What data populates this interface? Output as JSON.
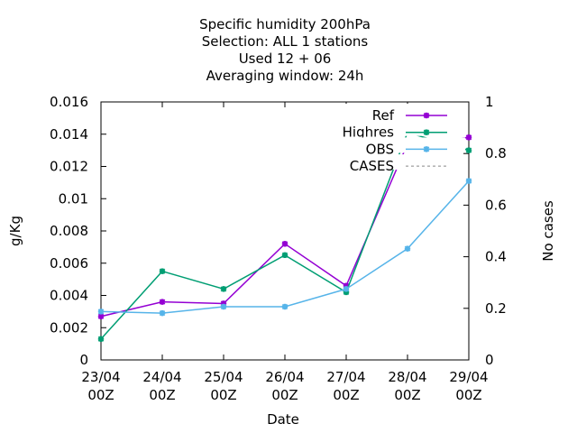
{
  "chart_data": {
    "type": "line",
    "title_lines": [
      "Specific humidity 200hPa",
      "Selection: ALL      1 stations",
      "Used  12 + 06",
      "Averaging window: 24h"
    ],
    "xlabel": "Date",
    "ylabel": "g/Kg",
    "y2label": "No cases",
    "x_ticks": [
      {
        "line1": "23/04",
        "line2": "00Z"
      },
      {
        "line1": "24/04",
        "line2": "00Z"
      },
      {
        "line1": "25/04",
        "line2": "00Z"
      },
      {
        "line1": "26/04",
        "line2": "00Z"
      },
      {
        "line1": "27/04",
        "line2": "00Z"
      },
      {
        "line1": "28/04",
        "line2": "00Z"
      },
      {
        "line1": "29/04",
        "line2": "00Z"
      }
    ],
    "ylim": [
      0,
      0.016
    ],
    "y_ticks": [
      "0",
      "0.002",
      "0.004",
      "0.006",
      "0.008",
      "0.01",
      "0.012",
      "0.014",
      "0.016"
    ],
    "y2lim": [
      0,
      1
    ],
    "y2_ticks": [
      "0",
      "0.2",
      "0.4",
      "0.6",
      "0.8",
      "1"
    ],
    "grid": false,
    "legend_position": "top-right",
    "series": [
      {
        "name": "Ref",
        "color": "#9400d3",
        "marker": "star",
        "values": [
          0.0027,
          0.0036,
          0.0035,
          0.0072,
          0.0046,
          0.0134,
          0.0138
        ]
      },
      {
        "name": "Highres",
        "color": "#009e73",
        "marker": "star",
        "values": [
          0.0013,
          0.0055,
          0.0044,
          0.0065,
          0.0042,
          0.0141,
          0.013
        ]
      },
      {
        "name": "OBS",
        "color": "#56b4e9",
        "marker": "star",
        "values": [
          0.003,
          0.0029,
          0.0033,
          0.0033,
          0.0044,
          0.0069,
          0.0111
        ]
      },
      {
        "name": "CASES",
        "color": "#888888",
        "dashed": true,
        "values": []
      }
    ]
  }
}
